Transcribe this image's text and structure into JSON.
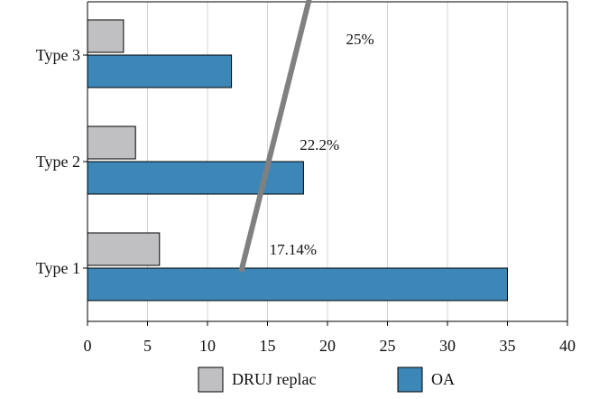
{
  "chart_data": {
    "type": "bar",
    "orientation": "horizontal",
    "categories": [
      "Type 1",
      "Type 2",
      "Type 3"
    ],
    "series": [
      {
        "name": "DRUJ replac",
        "values": [
          6,
          4,
          3
        ],
        "color": "#c0c0c2"
      },
      {
        "name": "OA",
        "values": [
          35,
          18,
          12
        ],
        "color": "#3d87b8"
      }
    ],
    "xlim": [
      0,
      40
    ],
    "xticks": [
      0,
      5,
      10,
      15,
      20,
      25,
      30,
      35,
      40
    ],
    "grid": "vertical",
    "legend": "bottom",
    "annotations": [
      {
        "category": "Type 1",
        "text": "17.14%"
      },
      {
        "category": "Type 2",
        "text": "22.2%"
      },
      {
        "category": "Type 3",
        "text": "25%"
      }
    ],
    "trend_line": {
      "color": "#808080",
      "points": [
        [
          12.8,
          "Type 1"
        ],
        [
          18.5,
          "Type 3"
        ]
      ]
    }
  }
}
